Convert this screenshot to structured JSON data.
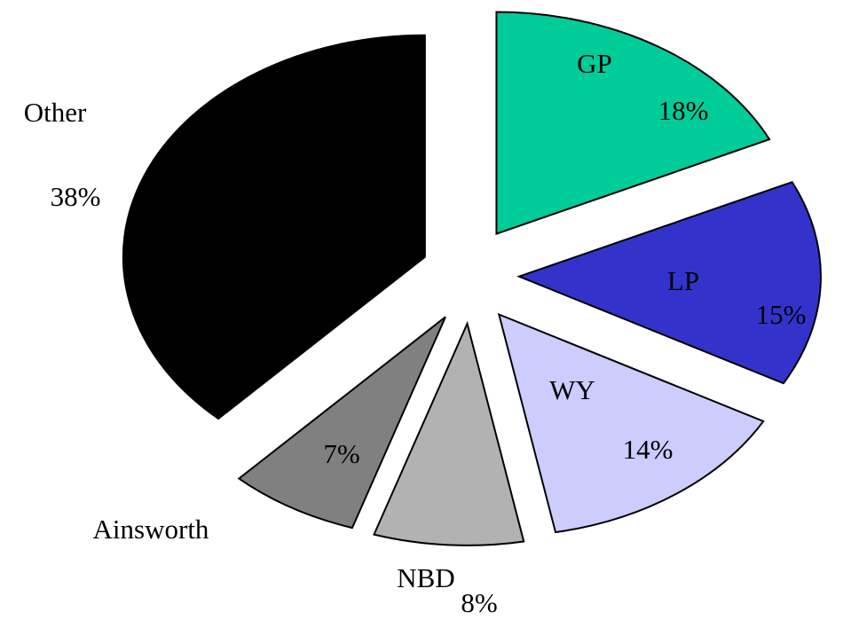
{
  "chart_data": {
    "type": "pie",
    "categories": [
      "GP",
      "LP",
      "WY",
      "NBD",
      "Ainsworth",
      "Other"
    ],
    "values": [
      18,
      15,
      14,
      8,
      7,
      38
    ],
    "value_labels": [
      "18%",
      "15%",
      "14%",
      "8%",
      "7%",
      "38%"
    ],
    "colors": [
      "#00cc99",
      "#3333cc",
      "#ccccff",
      "#b2b2b2",
      "#808080",
      "#000000"
    ]
  }
}
